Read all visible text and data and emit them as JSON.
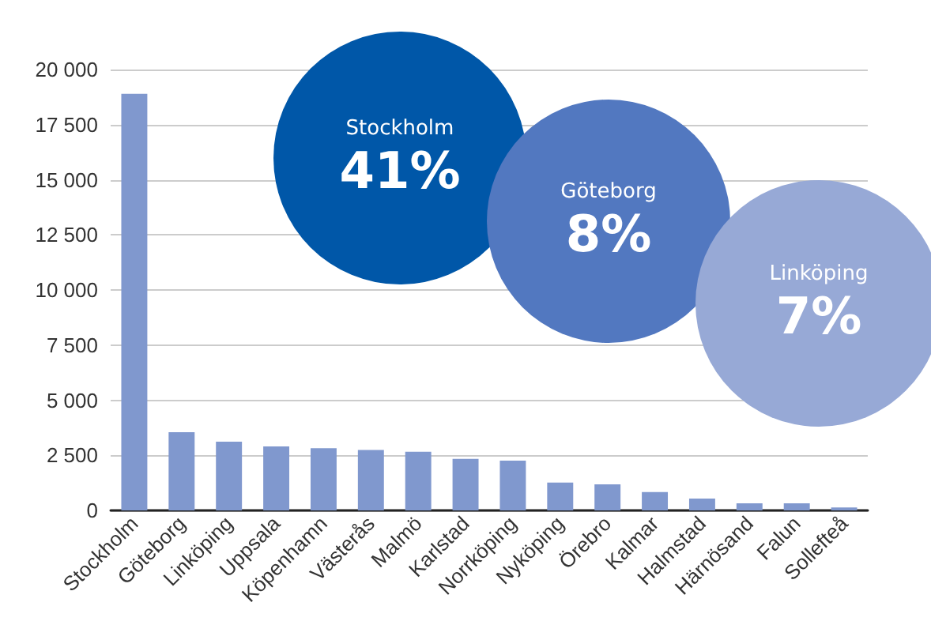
{
  "chart_data": {
    "type": "bar",
    "categories": [
      "Stockholm",
      "Göteborg",
      "Linköping",
      "Uppsala",
      "Köpenhamn",
      "Västerås",
      "Malmö",
      "Karlstad",
      "Norrköping",
      "Nyköping",
      "Örebro",
      "Kalmar",
      "Halmstad",
      "Härnösand",
      "Falun",
      "Sollefteå"
    ],
    "values": [
      18900,
      3550,
      3120,
      2900,
      2820,
      2740,
      2660,
      2340,
      2260,
      1260,
      1180,
      830,
      540,
      320,
      320,
      130
    ],
    "color": "#8098ce",
    "ylim": [
      0,
      20000
    ],
    "yticks": [
      {
        "value": 0,
        "label": "0"
      },
      {
        "value": 2500,
        "label": "2 500"
      },
      {
        "value": 5000,
        "label": "5 000"
      },
      {
        "value": 7500,
        "label": "7 500"
      },
      {
        "value": 10000,
        "label": "10 000"
      },
      {
        "value": 12500,
        "label": "12 500"
      },
      {
        "value": 15000,
        "label": "15 000"
      },
      {
        "value": 17500,
        "label": "17 500"
      },
      {
        "value": 20000,
        "label": "20 000"
      }
    ],
    "grid": "y",
    "annotations": [
      "Stockholm",
      "41%",
      "Göteborg",
      "8%",
      "Linköping",
      "7%"
    ]
  }
}
